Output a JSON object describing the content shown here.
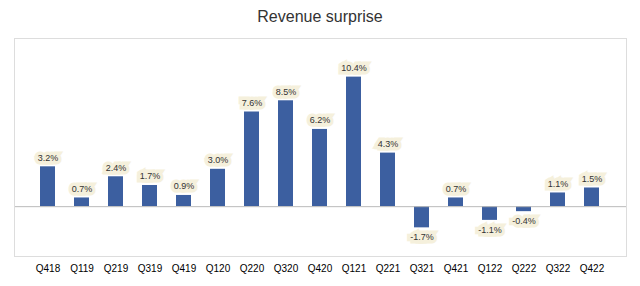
{
  "chart_data": {
    "type": "bar",
    "title": "Revenue surprise",
    "categories": [
      "Q418",
      "Q119",
      "Q219",
      "Q319",
      "Q419",
      "Q120",
      "Q220",
      "Q320",
      "Q420",
      "Q121",
      "Q221",
      "Q321",
      "Q421",
      "Q122",
      "Q222",
      "Q322",
      "Q422"
    ],
    "values": [
      3.2,
      0.7,
      2.4,
      1.7,
      0.9,
      3.0,
      7.6,
      8.5,
      6.2,
      10.4,
      4.3,
      -1.7,
      0.7,
      -1.1,
      -0.4,
      1.1,
      1.5
    ],
    "value_labels": [
      "3.2%",
      "0.7%",
      "2.4%",
      "1.7%",
      "0.9%",
      "3.0%",
      "7.6%",
      "8.5%",
      "6.2%",
      "10.4%",
      "4.3%",
      "-1.7%",
      "0.7%",
      "-1.1%",
      "-0.4%",
      "1.1%",
      "1.5%"
    ],
    "color": "#3C5FA0",
    "ylim": [
      -4.0,
      13.5
    ],
    "data_labels": true,
    "tick_labels": "x",
    "grid": false
  }
}
